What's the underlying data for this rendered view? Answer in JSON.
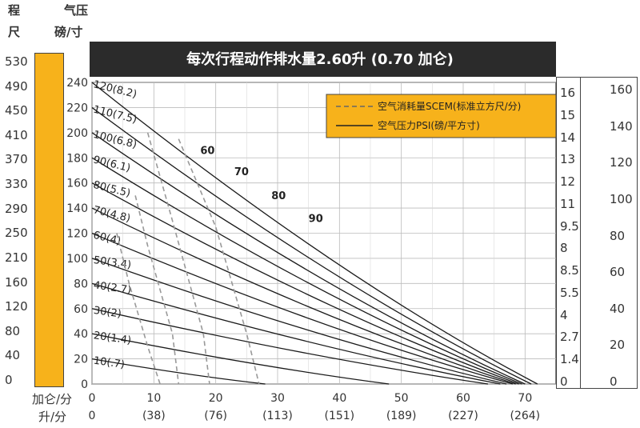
{
  "corner": {
    "left_top": "程",
    "left_bottom": "尺",
    "pressure_top": "气压",
    "pressure_bottom": "磅/寸"
  },
  "bottom_units": {
    "line1": "加仑/分",
    "line2": "升/分"
  },
  "chart_data": {
    "type": "line",
    "title": "每次行程动作排水量2.60升 (0.70 加仑)",
    "legend": [
      {
        "name": "空气消耗量SCEM(标准立方尺/分)",
        "style": "dashed"
      },
      {
        "name": "空气压力PSI(磅/平方寸)",
        "style": "solid"
      }
    ],
    "legend_placement": "top-right",
    "xlim": [
      0,
      75
    ],
    "ylim": [
      0,
      240
    ],
    "x_ticks": [
      0,
      10,
      20,
      30,
      40,
      50,
      60,
      70
    ],
    "x_ticks_secondary": [
      "0",
      "(38)",
      "(76)",
      "(113)",
      "(151)",
      "(189)",
      "(227)",
      "(264)"
    ],
    "y_ticks": [
      0,
      20,
      40,
      60,
      80,
      100,
      120,
      140,
      160,
      180,
      200,
      220,
      240
    ],
    "left_scale_ticks": [
      "530",
      "490",
      "450",
      "410",
      "370",
      "330",
      "290",
      "250",
      "210",
      "160",
      "120",
      "80",
      "40",
      "0"
    ],
    "right_scale_1_ticks": [
      "16",
      "15",
      "14",
      "13",
      "12",
      "11",
      "9.5",
      "8",
      "8.5",
      "5.5",
      "4",
      "2.7",
      "1.4",
      "0"
    ],
    "right_scale_2_ticks": [
      "160",
      "140",
      "120",
      "100",
      "80",
      "60",
      "40",
      "20",
      "0"
    ],
    "grid": true,
    "pressure_curves": [
      {
        "label": "120(8.2)",
        "y0": 240,
        "x_end": 72
      },
      {
        "label": "110(7.5)",
        "y0": 220,
        "x_end": 71
      },
      {
        "label": "100(6.8)",
        "y0": 200,
        "x_end": 70
      },
      {
        "label": "90(6.1)",
        "y0": 180,
        "x_end": 69.5
      },
      {
        "label": "80(5.5)",
        "y0": 160,
        "x_end": 69
      },
      {
        "label": "70(4.8)",
        "y0": 140,
        "x_end": 68.5
      },
      {
        "label": "60(4)",
        "y0": 120,
        "x_end": 68
      },
      {
        "label": "50(3.4)",
        "y0": 100,
        "x_end": 67
      },
      {
        "label": "40(2.7)",
        "y0": 80,
        "x_end": 66
      },
      {
        "label": "30(2)",
        "y0": 60,
        "x_end": 64
      },
      {
        "label": "20(1.4)",
        "y0": 40,
        "x_end": 48
      },
      {
        "label": "10(.7)",
        "y0": 20,
        "x_end": 28
      }
    ],
    "air_consumption_curves": [
      {
        "label": "60",
        "points": [
          [
            9,
            200
          ],
          [
            13,
            130
          ],
          [
            18,
            40
          ],
          [
            19,
            0
          ]
        ]
      },
      {
        "label": "70",
        "points": [
          [
            14,
            195
          ],
          [
            20,
            125
          ],
          [
            25,
            40
          ],
          [
            27,
            0
          ]
        ]
      },
      {
        "label": "80",
        "points": [
          [
            7,
            150
          ],
          [
            9,
            110
          ],
          [
            13,
            40
          ],
          [
            14,
            0
          ]
        ]
      },
      {
        "label": "90",
        "points": [
          [
            4,
            120
          ],
          [
            6,
            80
          ],
          [
            9,
            30
          ],
          [
            11,
            0
          ]
        ]
      }
    ],
    "air_consumption_annotations": [
      {
        "text": "60",
        "x": 17.5,
        "y": 183
      },
      {
        "text": "70",
        "x": 23,
        "y": 166
      },
      {
        "text": "80",
        "x": 29,
        "y": 147
      },
      {
        "text": "90",
        "x": 35,
        "y": 129
      }
    ]
  }
}
